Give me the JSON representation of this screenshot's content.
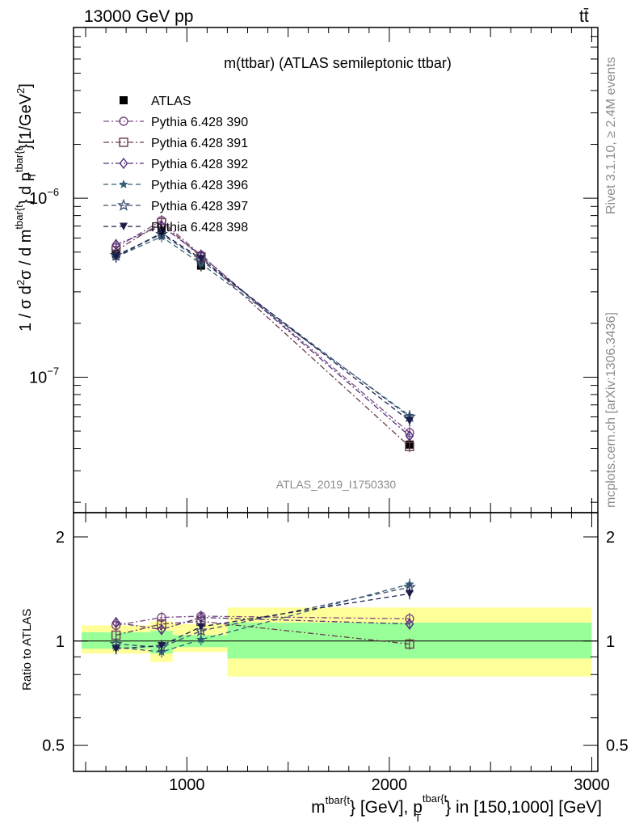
{
  "header": {
    "left": "13000 GeV pp",
    "right": "tt̄"
  },
  "side_label_top": "Rivet 3.1.10, ≥ 2.4M events",
  "side_label_bottom": "mcplots.cern.ch [arXiv:1306.3436]",
  "analysis_id": "ATLAS_2019_I1750330",
  "colors": {
    "data": "#000000",
    "band_inner": "#99ff99",
    "band_outer": "#ffff99",
    "p390": "#7b4a83",
    "p391": "#6b3c4c",
    "p392": "#53317a",
    "p396": "#2f5f74",
    "p397": "#3c4d6e",
    "p398": "#1c1c4c"
  },
  "chart_data": [
    {
      "type": "line",
      "title": "m(ttbar) (ATLAS semileptonic ttbar)",
      "ylabel_parts": [
        "1 / σ d",
        "2",
        "σ / d m",
        "tbar{t",
        "} d p",
        "tbar{t",
        "T",
        "}[1/GeV",
        "2",
        "]"
      ],
      "yscale": "log",
      "xlim": [
        440,
        3030
      ],
      "ylim": [
        1.75e-08,
        9e-06
      ],
      "y_tick_labels": [
        {
          "value": 1e-06,
          "base": "10",
          "exp": "−6"
        },
        {
          "value": 1e-07,
          "base": "10",
          "exp": "−7"
        }
      ],
      "x": [
        650,
        875,
        1070,
        2100
      ],
      "series": [
        {
          "name": "ATLAS",
          "key": "data",
          "marker": "square-filled",
          "values": [
            4.9e-07,
            6.6e-07,
            4.2e-07,
            4.2e-08
          ]
        },
        {
          "name": "Pythia 6.428 390",
          "key": "p390",
          "marker": "circle-open",
          "dash": "dashdot",
          "values": [
            5.3e-07,
            7.5e-07,
            4.8e-07,
            4.9e-08
          ]
        },
        {
          "name": "Pythia 6.428 391",
          "key": "p391",
          "marker": "square-open",
          "dash": "dashdot",
          "values": [
            5.1e-07,
            7.3e-07,
            4.7e-07,
            4.1e-08
          ]
        },
        {
          "name": "Pythia 6.428 392",
          "key": "p392",
          "marker": "diamond-open",
          "dash": "dashdot",
          "values": [
            5.5e-07,
            7e-07,
            4.8e-07,
            4.7e-08
          ]
        },
        {
          "name": "Pythia 6.428 396",
          "key": "p396",
          "marker": "star-filled",
          "dash": "dashed",
          "values": [
            4.7e-07,
            6.1e-07,
            4.3e-07,
            6.1e-08
          ]
        },
        {
          "name": "Pythia 6.428 397",
          "key": "p397",
          "marker": "star-open",
          "dash": "dashed",
          "values": [
            4.8e-07,
            6.3e-07,
            4.5e-07,
            6e-08
          ]
        },
        {
          "name": "Pythia 6.428 398",
          "key": "p398",
          "marker": "triangle-down-filled",
          "dash": "dashed",
          "values": [
            4.7e-07,
            6.4e-07,
            4.6e-07,
            5.7e-08
          ]
        }
      ]
    },
    {
      "type": "line",
      "ylabel": "Ratio to ATLAS",
      "yscale": "log",
      "xlabel_parts": [
        "m",
        "tbar{t",
        "} [GeV], p",
        "tbar{t",
        "T",
        "} in [150,1000] [GeV]"
      ],
      "xlim": [
        440,
        3030
      ],
      "ylim": [
        0.42,
        2.35
      ],
      "y_tick_labels": [
        {
          "value": 0.5,
          "label": "0.5"
        },
        {
          "value": 1,
          "label": "1"
        },
        {
          "value": 2,
          "label": "2"
        }
      ],
      "x_tick_labels": [
        {
          "value": 1000,
          "label": "1000"
        },
        {
          "value": 2000,
          "label": "2000"
        },
        {
          "value": 3000,
          "label": "3000"
        }
      ],
      "bands": [
        {
          "xmin": 480,
          "xmax": 820,
          "inner": [
            0.95,
            1.06
          ],
          "outer": [
            0.92,
            1.11
          ]
        },
        {
          "xmin": 820,
          "xmax": 930,
          "inner": [
            0.92,
            1.07
          ],
          "outer": [
            0.87,
            1.14
          ]
        },
        {
          "xmin": 930,
          "xmax": 1200,
          "inner": [
            0.96,
            1.04
          ],
          "outer": [
            0.93,
            1.12
          ]
        },
        {
          "xmin": 1200,
          "xmax": 3000,
          "inner": [
            0.89,
            1.13
          ],
          "outer": [
            0.79,
            1.25
          ]
        }
      ],
      "x": [
        650,
        875,
        1070,
        2100
      ],
      "series": [
        {
          "name": "Pythia 6.428 390",
          "key": "p390",
          "marker": "circle-open",
          "dash": "dashdot",
          "values": [
            1.11,
            1.17,
            1.18,
            1.16
          ]
        },
        {
          "name": "Pythia 6.428 391",
          "key": "p391",
          "marker": "square-open",
          "dash": "dashdot",
          "values": [
            1.04,
            1.12,
            1.14,
            0.98
          ]
        },
        {
          "name": "Pythia 6.428 392",
          "key": "p392",
          "marker": "diamond-open",
          "dash": "dashdot",
          "values": [
            1.13,
            1.08,
            1.17,
            1.12
          ]
        },
        {
          "name": "Pythia 6.428 396",
          "key": "p396",
          "marker": "star-filled",
          "dash": "dashed",
          "values": [
            0.96,
            0.93,
            1.01,
            1.46
          ]
        },
        {
          "name": "Pythia 6.428 397",
          "key": "p397",
          "marker": "star-open",
          "dash": "dashed",
          "values": [
            0.98,
            0.96,
            1.07,
            1.43
          ]
        },
        {
          "name": "Pythia 6.428 398",
          "key": "p398",
          "marker": "triangle-down-filled",
          "dash": "dashed",
          "values": [
            0.95,
            0.97,
            1.1,
            1.37
          ]
        }
      ]
    }
  ]
}
